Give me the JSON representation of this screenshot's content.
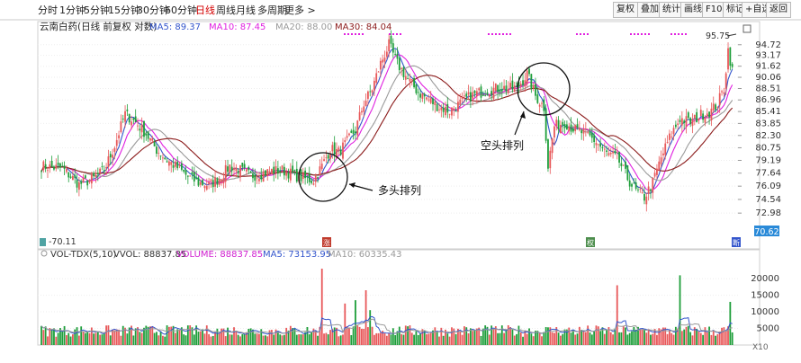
{
  "toolbar": {
    "periods": [
      "分时",
      "1分钟",
      "5分钟",
      "15分钟",
      "30分钟",
      "60分钟",
      "日线",
      "周线",
      "月线",
      "多周期",
      "更多 >"
    ],
    "active_period": "日线",
    "buttons": [
      "复权",
      "叠加",
      "统计",
      "画线",
      "F10",
      "标记",
      "+自选",
      "返回"
    ]
  },
  "price_panel": {
    "stock_title": "云南白药(日线 前复权 对数)",
    "ma_legend": [
      {
        "label": "MA5: 89.37",
        "color": "#3355cc"
      },
      {
        "label": "MA10: 87.45",
        "color": "#e020e0"
      },
      {
        "label": "MA20: 88.00",
        "color": "#9a9a9a"
      },
      {
        "label": "MA30: 84.04",
        "color": "#8b1a1a"
      }
    ],
    "y_ticks": [
      "94.72",
      "93.17",
      "91.62",
      "90.06",
      "88.51",
      "86.96",
      "85.41",
      "83.85",
      "82.30",
      "80.75",
      "79.19",
      "77.64",
      "76.09",
      "74.54",
      "72.98"
    ],
    "last_price_tag": "70.62",
    "high_marker": "95.75",
    "low_marker": "70.11",
    "annotations": [
      "多头排列",
      "空头排列"
    ],
    "bottom_markers": [
      "涨",
      "权",
      "断"
    ]
  },
  "volume_panel": {
    "legend": [
      {
        "label": "VOL-TDX(5,10)",
        "color": "#333333"
      },
      {
        "label": "VVOL: 88837.85",
        "color": "#333333"
      },
      {
        "label": "VOLUME: 88837.85",
        "color": "#d020d0"
      },
      {
        "label": "MA5: 73153.95",
        "color": "#3355cc"
      },
      {
        "label": "MA10: 60335.43",
        "color": "#9a9a9a"
      }
    ],
    "y_ticks": [
      "20000",
      "15000",
      "10000",
      "5000"
    ],
    "unit_label": "X10"
  },
  "chart_data": {
    "type": "candlestick",
    "title": "云南白药(日线 前复权 对数)",
    "price_axis": {
      "min": 70.11,
      "max": 95.75,
      "ticks": [
        94.72,
        93.17,
        91.62,
        90.06,
        88.51,
        86.96,
        85.41,
        83.85,
        82.3,
        80.75,
        79.19,
        77.64,
        76.09,
        74.54,
        72.98
      ],
      "scale": "log"
    },
    "volume_axis": {
      "min": 0,
      "max": 23000,
      "ticks": [
        5000,
        10000,
        15000,
        20000
      ]
    },
    "close_path": [
      [
        0,
        78.5
      ],
      [
        10,
        78.2
      ],
      [
        18,
        76.3
      ],
      [
        25,
        77.0
      ],
      [
        30,
        78.0
      ],
      [
        35,
        81.0
      ],
      [
        40,
        85.1
      ],
      [
        45,
        84.0
      ],
      [
        50,
        82.5
      ],
      [
        55,
        80.5
      ],
      [
        60,
        79.2
      ],
      [
        65,
        78.3
      ],
      [
        70,
        77.2
      ],
      [
        75,
        76.5
      ],
      [
        80,
        76.2
      ],
      [
        85,
        77.0
      ],
      [
        90,
        78.5
      ],
      [
        95,
        78.0
      ],
      [
        100,
        77.3
      ],
      [
        105,
        77.6
      ],
      [
        110,
        77.9
      ],
      [
        115,
        78.0
      ],
      [
        120,
        77.5
      ],
      [
        125,
        77.0
      ],
      [
        130,
        76.8
      ],
      [
        134,
        78.5
      ],
      [
        138,
        80.6
      ],
      [
        142,
        80.2
      ],
      [
        146,
        81.5
      ],
      [
        150,
        83.0
      ],
      [
        154,
        86.5
      ],
      [
        158,
        88.5
      ],
      [
        162,
        92.0
      ],
      [
        166,
        94.7
      ],
      [
        170,
        92.0
      ],
      [
        175,
        89.8
      ],
      [
        180,
        88.0
      ],
      [
        185,
        87.0
      ],
      [
        190,
        86.0
      ],
      [
        195,
        85.5
      ],
      [
        200,
        86.5
      ],
      [
        205,
        87.5
      ],
      [
        210,
        88.0
      ],
      [
        215,
        88.4
      ],
      [
        220,
        88.6
      ],
      [
        225,
        88.5
      ],
      [
        228,
        88.9
      ],
      [
        232,
        90.5
      ],
      [
        236,
        87.5
      ],
      [
        240,
        86.0
      ],
      [
        242,
        78.5
      ],
      [
        245,
        83.5
      ],
      [
        250,
        84.0
      ],
      [
        255,
        83.0
      ],
      [
        260,
        82.5
      ],
      [
        265,
        81.5
      ],
      [
        270,
        80.0
      ],
      [
        275,
        79.5
      ],
      [
        280,
        77.0
      ],
      [
        284,
        75.5
      ],
      [
        288,
        74.8
      ],
      [
        292,
        76.5
      ],
      [
        296,
        79.5
      ],
      [
        300,
        82.0
      ],
      [
        305,
        84.5
      ],
      [
        310,
        84.0
      ],
      [
        315,
        85.0
      ],
      [
        320,
        85.5
      ],
      [
        323,
        86.5
      ],
      [
        326,
        88.5
      ],
      [
        328,
        94.0
      ],
      [
        330,
        91.0
      ]
    ],
    "moving_averages": [
      {
        "name": "MA5",
        "value": 89.37,
        "color": "#3355cc"
      },
      {
        "name": "MA10",
        "value": 87.45,
        "color": "#e020e0"
      },
      {
        "name": "MA20",
        "value": 88.0,
        "color": "#9a9a9a"
      },
      {
        "name": "MA30",
        "value": 84.04,
        "color": "#8b1a1a"
      }
    ],
    "volume_ma": [
      {
        "name": "MA5",
        "value": 73153.95,
        "color": "#3355cc"
      },
      {
        "name": "MA10",
        "value": 60335.43,
        "color": "#9a9a9a"
      }
    ],
    "last_volume": 88837.85,
    "volume_spikes": [
      {
        "x": 134,
        "value": 23000
      },
      {
        "x": 145,
        "value": 12500
      },
      {
        "x": 150,
        "value": 13500
      },
      {
        "x": 155,
        "value": 16500
      },
      {
        "x": 157,
        "value": 10500
      },
      {
        "x": 275,
        "value": 18000
      },
      {
        "x": 305,
        "value": 21000
      },
      {
        "x": 329,
        "value": 13000
      }
    ],
    "colors": {
      "up": "#e8585a",
      "down": "#1e9e3a",
      "circle": "#111111"
    }
  }
}
